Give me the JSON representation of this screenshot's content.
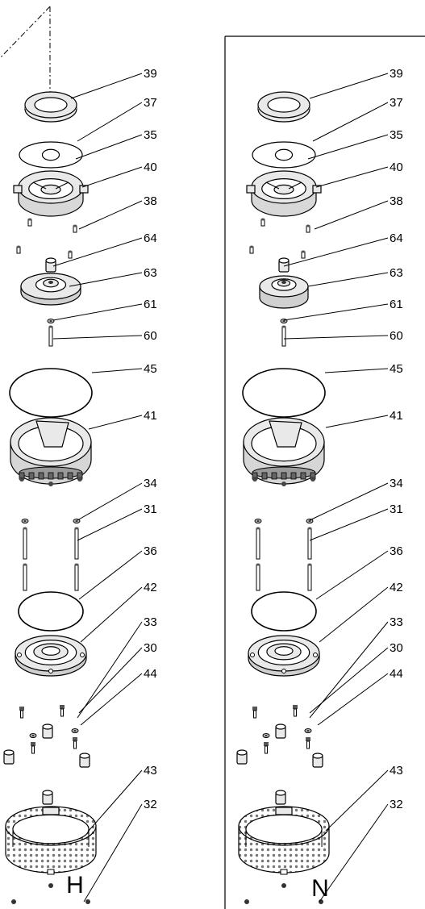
{
  "variants": [
    {
      "label": "H"
    },
    {
      "label": "N"
    }
  ],
  "callouts": [
    "39",
    "37",
    "35",
    "40",
    "38",
    "64",
    "63",
    "61",
    "60",
    "45",
    "41",
    "34",
    "31",
    "36",
    "42",
    "33",
    "30",
    "44",
    "43",
    "32"
  ],
  "colors": {
    "line": "#000000",
    "part_fill": "#e9e9e9",
    "dark": "#555555",
    "paper": "#ffffff"
  }
}
